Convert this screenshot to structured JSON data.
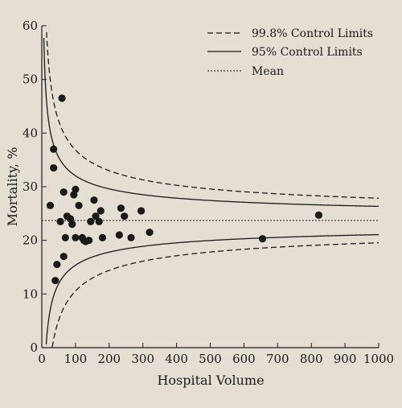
{
  "colors": {
    "background": "#e4ded3",
    "ink": "#1a1a1a"
  },
  "chart_data": {
    "type": "scatter",
    "subtype": "funnel plot",
    "title": "",
    "xlabel": "Hospital Volume",
    "ylabel": "Mortality, %",
    "xlim": [
      0,
      1000
    ],
    "ylim": [
      0,
      60
    ],
    "xticks": [
      0,
      100,
      200,
      300,
      400,
      500,
      600,
      700,
      800,
      900,
      1000
    ],
    "yticks": [
      0,
      10,
      20,
      30,
      40,
      50,
      60
    ],
    "grid": false,
    "legend_position": "top-right",
    "legend": [
      {
        "label": "99.8% Control Limits",
        "style": "dashed"
      },
      {
        "label": "95% Control Limits",
        "style": "solid"
      },
      {
        "label": "Mean",
        "style": "dotted"
      }
    ],
    "mean": 23.7,
    "z_95": 1.96,
    "z_998": 3.09,
    "points": [
      {
        "x": 25,
        "y": 26.5
      },
      {
        "x": 35,
        "y": 33.5
      },
      {
        "x": 35,
        "y": 37
      },
      {
        "x": 40,
        "y": 12.5
      },
      {
        "x": 45,
        "y": 15.5
      },
      {
        "x": 55,
        "y": 23.5
      },
      {
        "x": 60,
        "y": 46.5
      },
      {
        "x": 65,
        "y": 17
      },
      {
        "x": 65,
        "y": 29
      },
      {
        "x": 70,
        "y": 20.5
      },
      {
        "x": 75,
        "y": 24.5
      },
      {
        "x": 85,
        "y": 24
      },
      {
        "x": 90,
        "y": 23
      },
      {
        "x": 95,
        "y": 28.5
      },
      {
        "x": 100,
        "y": 29.5
      },
      {
        "x": 100,
        "y": 20.5
      },
      {
        "x": 110,
        "y": 26.5
      },
      {
        "x": 120,
        "y": 20.5
      },
      {
        "x": 125,
        "y": 20
      },
      {
        "x": 130,
        "y": 19.8
      },
      {
        "x": 140,
        "y": 20
      },
      {
        "x": 145,
        "y": 23.5
      },
      {
        "x": 155,
        "y": 27.5
      },
      {
        "x": 160,
        "y": 24.5
      },
      {
        "x": 170,
        "y": 23.5
      },
      {
        "x": 175,
        "y": 25.5
      },
      {
        "x": 180,
        "y": 20.5
      },
      {
        "x": 230,
        "y": 21
      },
      {
        "x": 235,
        "y": 26
      },
      {
        "x": 245,
        "y": 24.5
      },
      {
        "x": 265,
        "y": 20.5
      },
      {
        "x": 295,
        "y": 25.5
      },
      {
        "x": 320,
        "y": 21.5
      },
      {
        "x": 655,
        "y": 20.3
      },
      {
        "x": 822,
        "y": 24.7
      }
    ]
  }
}
